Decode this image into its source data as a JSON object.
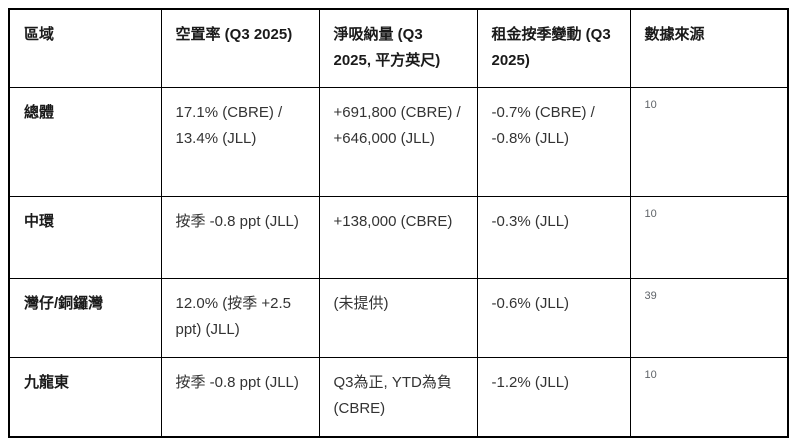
{
  "table": {
    "columns": [
      {
        "label": "區域"
      },
      {
        "label": "空置率 (Q3 2025)"
      },
      {
        "label": "淨吸納量 (Q3 2025, 平方英尺)"
      },
      {
        "label": "租金按季變動 (Q3 2025)"
      },
      {
        "label": "數據來源"
      }
    ],
    "rows": [
      {
        "region": "總體",
        "vacancy": "17.1% (CBRE) / 13.4% (JLL)",
        "absorption": "+691,800 (CBRE) / +646,000 (JLL)",
        "rent_change": "-0.7% (CBRE) / -0.8% (JLL)",
        "source": "10"
      },
      {
        "region": "中環",
        "vacancy": "按季 -0.8 ppt (JLL)",
        "absorption": "+138,000 (CBRE)",
        "rent_change": "-0.3% (JLL)",
        "source": "10"
      },
      {
        "region": "灣仔/銅鑼灣",
        "vacancy": "12.0% (按季 +2.5 ppt) (JLL)",
        "absorption": "(未提供)",
        "rent_change": "-0.6% (JLL)",
        "source": "39"
      },
      {
        "region": "九龍東",
        "vacancy": "按季 -0.8 ppt (JLL)",
        "absorption": "Q3為正, YTD為負 (CBRE)",
        "rent_change": "-1.2% (JLL)",
        "source": "10"
      }
    ]
  },
  "colors": {
    "border": "#000000",
    "header_text": "#1a1a1a",
    "body_text": "#333333",
    "source_text": "#5f6368",
    "background": "#ffffff"
  }
}
